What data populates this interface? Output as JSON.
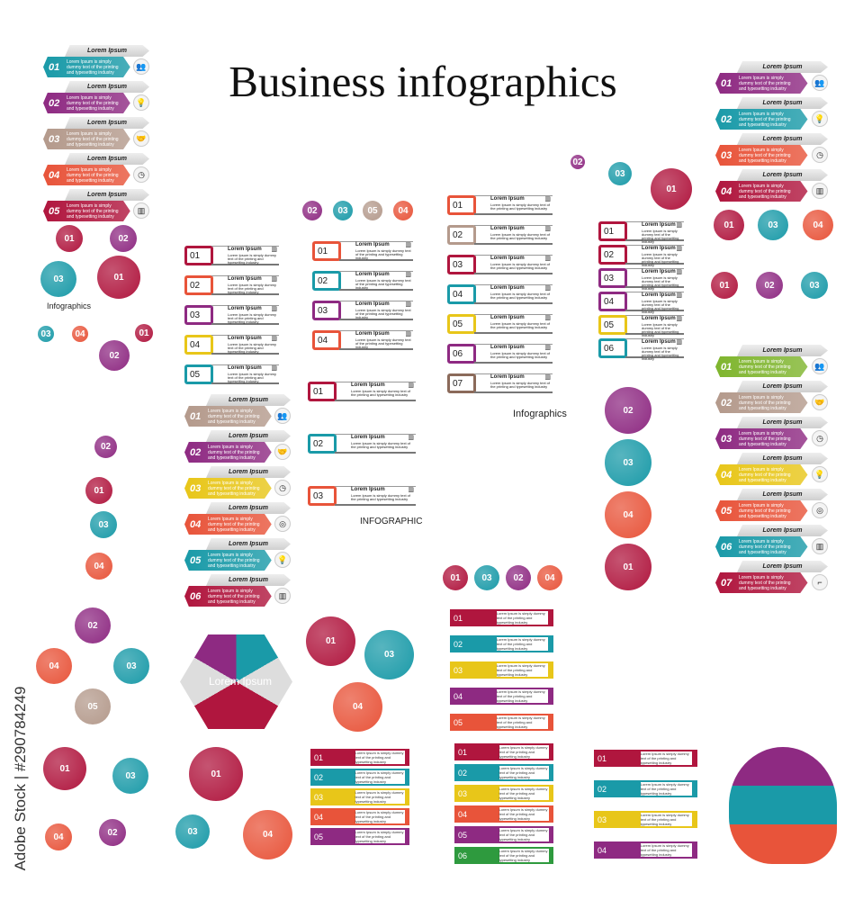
{
  "title": "Business infographics",
  "watermark": "Adobe Stock | #290784249",
  "common": {
    "heading": "Lorem Ipsum",
    "body": "Lorem Ipsum is simply dummy text of the printing and typesetting industry",
    "short": "Lorem Ipsum",
    "caps": "LOREM IPSUM"
  },
  "hex_list_left": [
    {
      "num": "01",
      "color": "#1a9aa8",
      "icon": "team-icon"
    },
    {
      "num": "02",
      "color": "#8e2a82",
      "icon": "lightbulb-icon"
    },
    {
      "num": "03",
      "color": "#b49a8c",
      "icon": "handshake-icon"
    },
    {
      "num": "04",
      "color": "#e8543a",
      "icon": "clock-icon"
    },
    {
      "num": "05",
      "color": "#b0163e",
      "icon": "chart-icon"
    }
  ],
  "hex_list_right_top": [
    {
      "num": "01",
      "color": "#8e2a82",
      "icon": "team-icon"
    },
    {
      "num": "02",
      "color": "#1a9aa8",
      "icon": "lightbulb-icon"
    },
    {
      "num": "03",
      "color": "#e8543a",
      "icon": "clock-icon"
    },
    {
      "num": "04",
      "color": "#b0163e",
      "icon": "chart-icon"
    }
  ],
  "hex_list_right": [
    {
      "num": "01",
      "color": "#7fb52e",
      "icon": "team-icon"
    },
    {
      "num": "02",
      "color": "#b49a8c",
      "icon": "handshake-icon"
    },
    {
      "num": "03",
      "color": "#8e2a82",
      "icon": "clock-icon"
    },
    {
      "num": "04",
      "color": "#e8c619",
      "icon": "lightbulb-icon"
    },
    {
      "num": "05",
      "color": "#e8543a",
      "icon": "target-icon"
    },
    {
      "num": "06",
      "color": "#1a9aa8",
      "icon": "chart-icon"
    },
    {
      "num": "07",
      "color": "#b0163e",
      "icon": "stairs-icon"
    }
  ],
  "hex_list_mid": [
    {
      "num": "01",
      "color": "#b49a8c",
      "icon": "team-icon"
    },
    {
      "num": "02",
      "color": "#8e2a82",
      "icon": "handshake-icon"
    },
    {
      "num": "03",
      "color": "#e8c619",
      "icon": "clock-icon"
    },
    {
      "num": "04",
      "color": "#e8543a",
      "icon": "target-icon"
    },
    {
      "num": "05",
      "color": "#1a9aa8",
      "icon": "lightbulb-icon"
    },
    {
      "num": "06",
      "color": "#b0163e",
      "icon": "chart-icon"
    }
  ],
  "rows_a": [
    {
      "num": "01",
      "color": "#b0163e"
    },
    {
      "num": "02",
      "color": "#e8543a"
    },
    {
      "num": "03",
      "color": "#8e2a82"
    },
    {
      "num": "04",
      "color": "#e8c619"
    },
    {
      "num": "05",
      "color": "#1a9aa8"
    }
  ],
  "rows_b": [
    {
      "num": "01",
      "color": "#e8543a"
    },
    {
      "num": "02",
      "color": "#1a9aa8"
    },
    {
      "num": "03",
      "color": "#8e2a82"
    },
    {
      "num": "04",
      "color": "#e8543a"
    }
  ],
  "rows_c": [
    {
      "num": "01",
      "color": "#b0163e"
    },
    {
      "num": "02",
      "color": "#1a9aa8"
    },
    {
      "num": "03",
      "color": "#e8543a"
    }
  ],
  "rows_d": [
    {
      "num": "01",
      "color": "#e8543a"
    },
    {
      "num": "02",
      "color": "#b49a8c"
    },
    {
      "num": "03",
      "color": "#b0163e"
    },
    {
      "num": "04",
      "color": "#1a9aa8"
    },
    {
      "num": "05",
      "color": "#e8c619"
    },
    {
      "num": "06",
      "color": "#8e2a82"
    },
    {
      "num": "07",
      "color": "#8b6a5a"
    }
  ],
  "rows_e": [
    {
      "num": "01",
      "color": "#b0163e"
    },
    {
      "num": "02",
      "color": "#b0163e"
    },
    {
      "num": "03",
      "color": "#8e2a82"
    },
    {
      "num": "04",
      "color": "#8e2a82"
    },
    {
      "num": "05",
      "color": "#e8c619"
    },
    {
      "num": "06",
      "color": "#1a9aa8"
    }
  ],
  "bands_ribbon": [
    {
      "num": "01",
      "color": "#b0163e"
    },
    {
      "num": "02",
      "color": "#1a9aa8"
    },
    {
      "num": "03",
      "color": "#e8c619"
    },
    {
      "num": "04",
      "color": "#8e2a82"
    },
    {
      "num": "05",
      "color": "#e8543a"
    }
  ],
  "bands_stack3": [
    {
      "num": "01",
      "color": "#b0163e"
    },
    {
      "num": "02",
      "color": "#1a9aa8"
    },
    {
      "num": "03",
      "color": "#e8c619"
    },
    {
      "num": "04",
      "color": "#e8543a"
    },
    {
      "num": "05",
      "color": "#8e2a82"
    }
  ],
  "bands_stack4": [
    {
      "num": "01",
      "color": "#b0163e"
    },
    {
      "num": "02",
      "color": "#1a9aa8"
    },
    {
      "num": "03",
      "color": "#e8c619"
    },
    {
      "num": "04",
      "color": "#e8543a"
    },
    {
      "num": "05",
      "color": "#8e2a82"
    },
    {
      "num": "06",
      "color": "#2e9a3e"
    }
  ],
  "bands_boxes": [
    {
      "num": "01",
      "color": "#b0163e"
    },
    {
      "num": "02",
      "color": "#1a9aa8"
    },
    {
      "num": "03",
      "color": "#e8c619"
    },
    {
      "num": "04",
      "color": "#8e2a82"
    }
  ],
  "labels": {
    "infographics": "Infographics",
    "infographic": "INFOGRAPHIC",
    "business_infographics": "Business infographics"
  },
  "circles": [
    {
      "num": "01",
      "color": "#b0163e"
    },
    {
      "num": "02",
      "color": "#8e2a82"
    },
    {
      "num": "03",
      "color": "#1a9aa8"
    },
    {
      "num": "04",
      "color": "#e8543a"
    },
    {
      "num": "05",
      "color": "#b49a8c"
    }
  ]
}
